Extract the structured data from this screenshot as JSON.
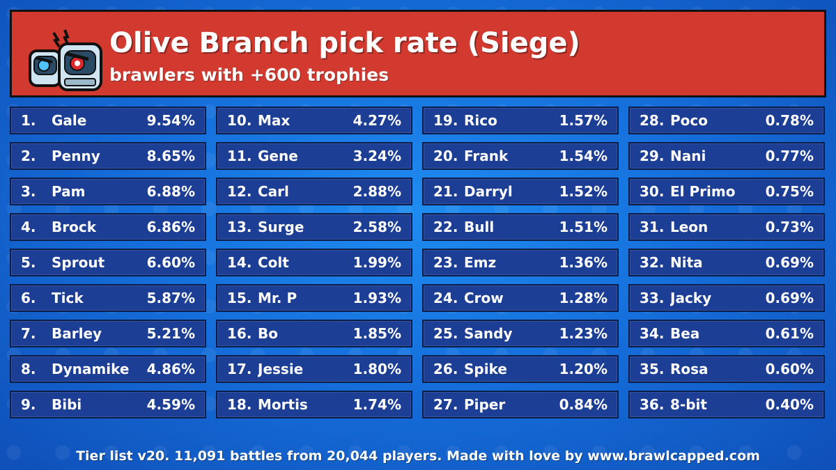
{
  "header": {
    "title": "Olive Branch pick rate (Siege)",
    "subtitle": "brawlers with +600 trophies"
  },
  "columns": [
    [
      {
        "rank": "1.",
        "name": "Gale",
        "pct": "9.54%"
      },
      {
        "rank": "2.",
        "name": "Penny",
        "pct": "8.65%"
      },
      {
        "rank": "3.",
        "name": "Pam",
        "pct": "6.88%"
      },
      {
        "rank": "4.",
        "name": "Brock",
        "pct": "6.86%"
      },
      {
        "rank": "5.",
        "name": "Sprout",
        "pct": "6.60%"
      },
      {
        "rank": "6.",
        "name": "Tick",
        "pct": "5.87%"
      },
      {
        "rank": "7.",
        "name": "Barley",
        "pct": "5.21%"
      },
      {
        "rank": "8.",
        "name": "Dynamike",
        "pct": "4.86%"
      },
      {
        "rank": "9.",
        "name": "Bibi",
        "pct": "4.59%"
      }
    ],
    [
      {
        "rank": "10.",
        "name": "Max",
        "pct": "4.27%"
      },
      {
        "rank": "11.",
        "name": "Gene",
        "pct": "3.24%"
      },
      {
        "rank": "12.",
        "name": "Carl",
        "pct": "2.88%"
      },
      {
        "rank": "13.",
        "name": "Surge",
        "pct": "2.58%"
      },
      {
        "rank": "14.",
        "name": "Colt",
        "pct": "1.99%"
      },
      {
        "rank": "15.",
        "name": "Mr. P",
        "pct": "1.93%"
      },
      {
        "rank": "16.",
        "name": "Bo",
        "pct": "1.85%"
      },
      {
        "rank": "17.",
        "name": "Jessie",
        "pct": "1.80%"
      },
      {
        "rank": "18.",
        "name": "Mortis",
        "pct": "1.74%"
      }
    ],
    [
      {
        "rank": "19.",
        "name": "Rico",
        "pct": "1.57%"
      },
      {
        "rank": "20.",
        "name": "Frank",
        "pct": "1.54%"
      },
      {
        "rank": "21.",
        "name": "Darryl",
        "pct": "1.52%"
      },
      {
        "rank": "22.",
        "name": "Bull",
        "pct": "1.51%"
      },
      {
        "rank": "23.",
        "name": "Emz",
        "pct": "1.36%"
      },
      {
        "rank": "24.",
        "name": "Crow",
        "pct": "1.28%"
      },
      {
        "rank": "25.",
        "name": "Sandy",
        "pct": "1.23%"
      },
      {
        "rank": "26.",
        "name": "Spike",
        "pct": "1.20%"
      },
      {
        "rank": "27.",
        "name": "Piper",
        "pct": "0.84%"
      }
    ],
    [
      {
        "rank": "28.",
        "name": "Poco",
        "pct": "0.78%"
      },
      {
        "rank": "29.",
        "name": "Nani",
        "pct": "0.77%"
      },
      {
        "rank": "30.",
        "name": "El Primo",
        "pct": "0.75%"
      },
      {
        "rank": "31.",
        "name": "Leon",
        "pct": "0.73%"
      },
      {
        "rank": "32.",
        "name": "Nita",
        "pct": "0.69%"
      },
      {
        "rank": "33.",
        "name": "Jacky",
        "pct": "0.69%"
      },
      {
        "rank": "34.",
        "name": "Bea",
        "pct": "0.61%"
      },
      {
        "rank": "35.",
        "name": "Rosa",
        "pct": "0.60%"
      },
      {
        "rank": "36.",
        "name": "8-bit",
        "pct": "0.40%"
      }
    ]
  ],
  "footer": {
    "text": "Tier list v20. 11,091 battles from 20,044 players. Made with love by www.brawlcapped.com"
  },
  "colors": {
    "header_bg": "#d23a30",
    "cell_bg": "#1c3e95",
    "page_bg": "#1670dc"
  },
  "icons": {
    "logo": "angry-robot-heads-icon"
  }
}
